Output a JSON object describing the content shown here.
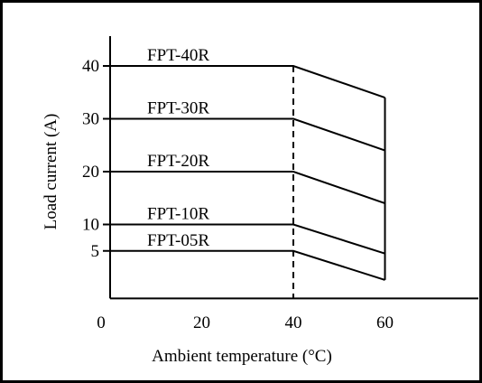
{
  "chart_data": {
    "type": "line",
    "title": "",
    "xlabel": "Ambient temperature (°C)",
    "ylabel": "Load current (A)",
    "xlim": [
      0,
      80
    ],
    "ylim": [
      -4,
      47
    ],
    "x_ticks": [
      0,
      20,
      40,
      60
    ],
    "y_ticks": [
      5,
      10,
      20,
      30,
      40
    ],
    "grid": false,
    "legend": "none",
    "derating_start_temp": 40,
    "series": [
      {
        "name": "FPT-40R",
        "points": [
          [
            0,
            40
          ],
          [
            40,
            40
          ],
          [
            60,
            34
          ]
        ]
      },
      {
        "name": "FPT-30R",
        "points": [
          [
            0,
            30
          ],
          [
            40,
            30
          ],
          [
            60,
            24
          ]
        ]
      },
      {
        "name": "FPT-20R",
        "points": [
          [
            0,
            20
          ],
          [
            40,
            20
          ],
          [
            60,
            14
          ]
        ]
      },
      {
        "name": "FPT-10R",
        "points": [
          [
            0,
            10
          ],
          [
            40,
            10
          ],
          [
            60,
            4.5
          ]
        ]
      },
      {
        "name": "FPT-05R",
        "points": [
          [
            0,
            5
          ],
          [
            40,
            5
          ],
          [
            60,
            -0.5
          ]
        ]
      }
    ],
    "colors": {
      "line": "#000000",
      "background": "#ffffff"
    }
  }
}
